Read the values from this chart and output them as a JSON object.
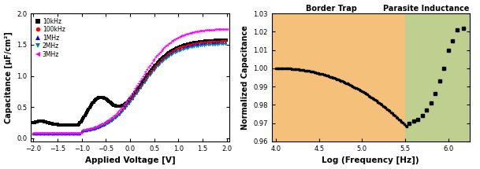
{
  "left_plot": {
    "xlabel": "Applied Voltage [V]",
    "ylabel": "Capacitance [μF/cm²]",
    "xlim": [
      -2.05,
      2.05
    ],
    "ylim": [
      -0.05,
      2.0
    ],
    "xticks": [
      -2.0,
      -1.5,
      -1.0,
      -0.5,
      0.0,
      0.5,
      1.0,
      1.5,
      2.0
    ],
    "yticks": [
      0.0,
      0.5,
      1.0,
      1.5,
      2.0
    ],
    "legend_entries": [
      "10kHz",
      "100kHz",
      "1MHz",
      "2MHz",
      "3MHz"
    ],
    "legend_colors": [
      "black",
      "red",
      "blue",
      "#008080",
      "magenta"
    ],
    "legend_markers": [
      "s",
      "o",
      "^",
      "v",
      "<"
    ],
    "bg_color": "white"
  },
  "right_plot": {
    "xlabel": "Log (Frequency [Hz])",
    "ylabel": "Normalized Capacitance",
    "xlim": [
      3.95,
      6.25
    ],
    "ylim": [
      0.96,
      1.03
    ],
    "xticks": [
      4.0,
      4.5,
      5.0,
      5.5,
      6.0
    ],
    "yticks": [
      0.96,
      0.97,
      0.98,
      0.99,
      1.0,
      1.01,
      1.02,
      1.03
    ],
    "border_trap_label": "Border Trap",
    "parasite_label": "Parasite Inductance",
    "border_trap_color": "#F5C07A",
    "parasite_color": "#BFCF8F",
    "region_boundary": 5.5,
    "marker_color": "black",
    "bg_color": "white"
  }
}
